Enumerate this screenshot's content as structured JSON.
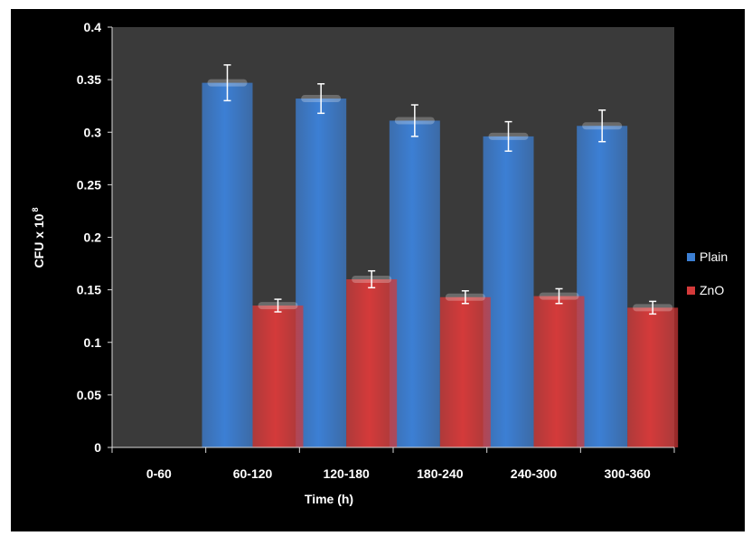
{
  "chart_data": {
    "type": "bar",
    "categories": [
      "0-60",
      "60-120",
      "120-180",
      "180-240",
      "240-300",
      "300-360"
    ],
    "series": [
      {
        "name": "Plain",
        "color": "#3c7fd4",
        "values": [
          null,
          0.347,
          0.332,
          0.311,
          0.296,
          0.306
        ],
        "errors": [
          null,
          0.017,
          0.014,
          0.015,
          0.014,
          0.015
        ]
      },
      {
        "name": "ZnO",
        "color": "#d43a3a",
        "values": [
          null,
          0.135,
          0.16,
          0.143,
          0.144,
          0.133
        ],
        "errors": [
          null,
          0.006,
          0.008,
          0.006,
          0.007,
          0.006
        ]
      }
    ],
    "title": "",
    "xlabel": "Time (h)",
    "ylabel_main": "CFU x 10",
    "ylabel_exponent": "8",
    "ylim": [
      0,
      0.4
    ],
    "yticks": [
      "0",
      "0.05",
      "0.1",
      "0.15",
      "0.2",
      "0.25",
      "0.3",
      "0.35",
      "0.4"
    ],
    "legend_position": "right",
    "grid": false,
    "plot_background": "#3a3a3a",
    "background": "#000000"
  }
}
